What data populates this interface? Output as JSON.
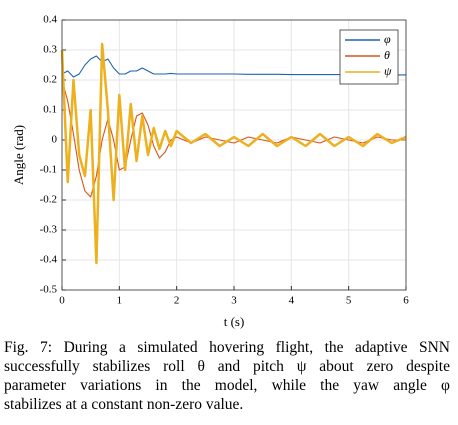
{
  "chart_data": {
    "type": "line",
    "xlabel": "t (s)",
    "ylabel": "Angle (rad)",
    "x": [
      0,
      0.1,
      0.2,
      0.3,
      0.4,
      0.5,
      0.6,
      0.7,
      0.8,
      0.9,
      1.0,
      1.1,
      1.2,
      1.3,
      1.4,
      1.5,
      1.6,
      1.7,
      1.8,
      1.9,
      2.0,
      2.25,
      2.5,
      2.75,
      3,
      3.25,
      3.5,
      3.75,
      4,
      4.25,
      4.5,
      4.75,
      5,
      5.25,
      5.5,
      5.75,
      6
    ],
    "series": [
      {
        "name": "φ",
        "color": "#1f63b0",
        "values": [
          0.22,
          0.23,
          0.21,
          0.22,
          0.25,
          0.27,
          0.28,
          0.26,
          0.27,
          0.24,
          0.22,
          0.22,
          0.23,
          0.23,
          0.24,
          0.23,
          0.22,
          0.22,
          0.22,
          0.222,
          0.22,
          0.22,
          0.22,
          0.22,
          0.22,
          0.219,
          0.219,
          0.219,
          0.218,
          0.218,
          0.218,
          0.218,
          0.218,
          0.217,
          0.217,
          0.217,
          0.217
        ]
      },
      {
        "name": "θ",
        "color": "#d9541a",
        "values": [
          0.2,
          0.13,
          0.02,
          -0.1,
          -0.17,
          -0.19,
          -0.12,
          0.0,
          0.07,
          0.0,
          -0.1,
          -0.09,
          0.0,
          0.08,
          0.09,
          0.05,
          -0.02,
          -0.06,
          -0.04,
          0.0,
          0.01,
          -0.01,
          0.01,
          0.0,
          -0.01,
          0.01,
          0.0,
          -0.01,
          0.01,
          0.0,
          -0.01,
          0.01,
          0.0,
          -0.01,
          0.01,
          0.0,
          0.0
        ]
      },
      {
        "name": "ψ",
        "color": "#edb120",
        "values": [
          0.3,
          -0.14,
          0.2,
          -0.05,
          -0.12,
          0.1,
          -0.41,
          0.32,
          0.1,
          -0.2,
          0.15,
          -0.1,
          0.12,
          -0.07,
          0.08,
          -0.05,
          0.04,
          -0.03,
          0.03,
          -0.02,
          0.03,
          -0.01,
          0.02,
          -0.02,
          0.01,
          -0.02,
          0.02,
          -0.02,
          0.01,
          -0.02,
          0.02,
          -0.02,
          0.01,
          -0.02,
          0.02,
          -0.01,
          0.01
        ]
      }
    ],
    "xlim": [
      0,
      6
    ],
    "xticks": [
      0,
      1,
      2,
      3,
      4,
      5,
      6
    ],
    "ylim": [
      -0.5,
      0.4
    ],
    "yticks": [
      -0.5,
      -0.4,
      -0.3,
      -0.2,
      -0.1,
      0,
      0.1,
      0.2,
      0.3,
      0.4
    ],
    "grid": true,
    "legend": "upper right",
    "caption": [
      "Fig. 7: During a simulated hovering flight, the adaptive SNN",
      "successfully stabilizes roll θ and pitch ψ about zero despite",
      "parameter variations in the model, while the yaw angle φ",
      "stabilizes at a constant non-zero value."
    ]
  }
}
